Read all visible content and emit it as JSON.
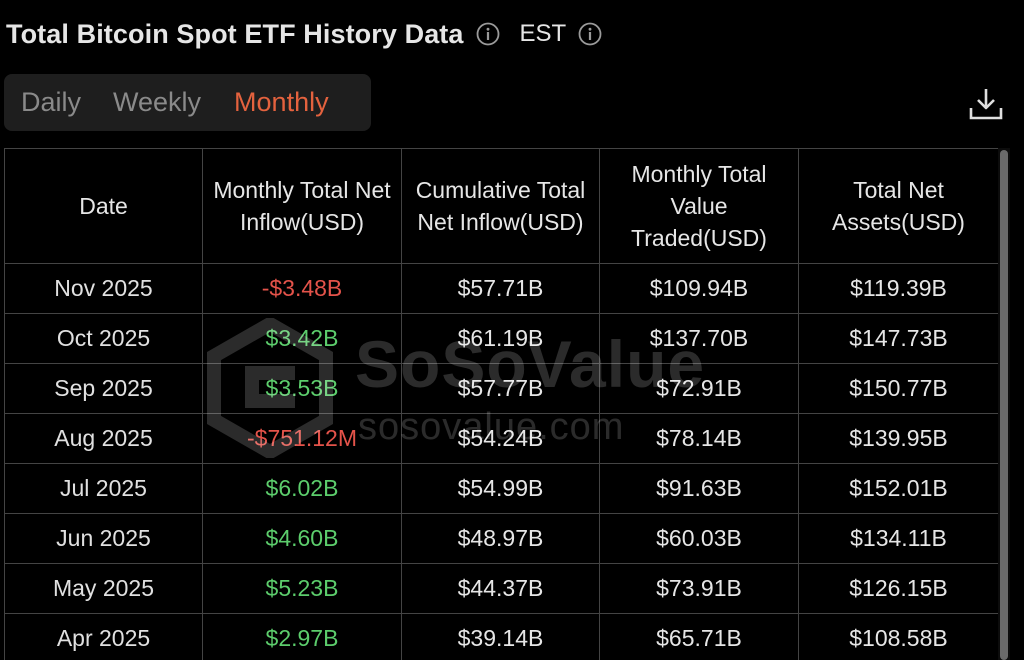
{
  "header": {
    "title": "Total Bitcoin Spot ETF History Data",
    "timezone": "EST",
    "info_icon": "info-circle-icon"
  },
  "tabs": [
    {
      "label": "Daily",
      "active": false
    },
    {
      "label": "Weekly",
      "active": false
    },
    {
      "label": "Monthly",
      "active": true
    }
  ],
  "download_icon": "download-icon",
  "table": {
    "headers": [
      "Date",
      "Monthly Total Net Inflow(USD)",
      "Cumulative Total Net Inflow(USD)",
      "Monthly Total Value Traded(USD)",
      "Total Net Assets(USD)"
    ],
    "rows": [
      {
        "date": "Nov 2025",
        "net_inflow": "-$3.48B",
        "cumulative": "$57.71B",
        "traded": "$109.94B",
        "assets": "$119.39B"
      },
      {
        "date": "Oct 2025",
        "net_inflow": "$3.42B",
        "cumulative": "$61.19B",
        "traded": "$137.70B",
        "assets": "$147.73B"
      },
      {
        "date": "Sep 2025",
        "net_inflow": "$3.53B",
        "cumulative": "$57.77B",
        "traded": "$72.91B",
        "assets": "$150.77B"
      },
      {
        "date": "Aug 2025",
        "net_inflow": "-$751.12M",
        "cumulative": "$54.24B",
        "traded": "$78.14B",
        "assets": "$139.95B"
      },
      {
        "date": "Jul 2025",
        "net_inflow": "$6.02B",
        "cumulative": "$54.99B",
        "traded": "$91.63B",
        "assets": "$152.01B"
      },
      {
        "date": "Jun 2025",
        "net_inflow": "$4.60B",
        "cumulative": "$48.97B",
        "traded": "$60.03B",
        "assets": "$134.11B"
      },
      {
        "date": "May 2025",
        "net_inflow": "$5.23B",
        "cumulative": "$44.37B",
        "traded": "$73.91B",
        "assets": "$126.15B"
      },
      {
        "date": "Apr 2025",
        "net_inflow": "$2.97B",
        "cumulative": "$39.14B",
        "traded": "$65.71B",
        "assets": "$108.58B"
      }
    ]
  },
  "watermark": {
    "brand": "SoSoValue",
    "url": "sosovalue.com"
  },
  "colors": {
    "accent": "#e4623e",
    "negative": "#e4534a",
    "positive": "#5ccd6c",
    "background": "#000000"
  }
}
